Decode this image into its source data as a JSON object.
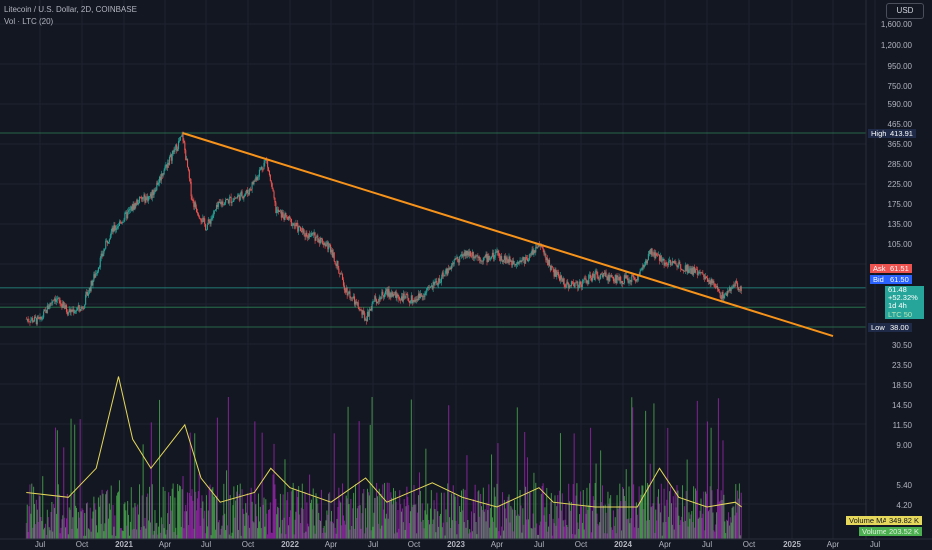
{
  "header": {
    "title": "Litecoin / U.S. Dollar, 2D, COINBASE",
    "volume_legend": "Vol · LTC (20)"
  },
  "currency_button": "USD",
  "chart_data": {
    "type": "candlestick",
    "scale": "log",
    "price_ticks": [
      "1,600.00",
      "1,200.00",
      "950.00",
      "750.00",
      "590.00",
      "465.00",
      "365.00",
      "285.00",
      "225.00",
      "175.00",
      "135.00",
      "105.00",
      "30.50",
      "23.50",
      "18.50",
      "14.50",
      "11.50",
      "9.00",
      "5.40",
      "4.20"
    ],
    "x_ticks": [
      "Jul",
      "Oct",
      "2021",
      "Apr",
      "Jul",
      "Oct",
      "2022",
      "Apr",
      "Jul",
      "Oct",
      "2023",
      "Apr",
      "Jul",
      "Oct",
      "2024",
      "Apr",
      "Jul",
      "Oct",
      "2025",
      "Apr",
      "Jul"
    ],
    "price_path": [
      [
        "2020-06-01",
        42
      ],
      [
        "2020-07-01",
        41
      ],
      [
        "2020-08-01",
        55
      ],
      [
        "2020-09-01",
        46
      ],
      [
        "2020-10-01",
        48
      ],
      [
        "2020-11-01",
        75
      ],
      [
        "2020-12-01",
        120
      ],
      [
        "2021-01-01",
        145
      ],
      [
        "2021-02-01",
        180
      ],
      [
        "2021-03-01",
        190
      ],
      [
        "2021-04-01",
        270
      ],
      [
        "2021-05-10",
        400
      ],
      [
        "2021-06-01",
        180
      ],
      [
        "2021-07-01",
        130
      ],
      [
        "2021-08-01",
        175
      ],
      [
        "2021-09-01",
        185
      ],
      [
        "2021-10-01",
        200
      ],
      [
        "2021-11-10",
        300
      ],
      [
        "2021-12-01",
        160
      ],
      [
        "2022-01-01",
        140
      ],
      [
        "2022-02-01",
        120
      ],
      [
        "2022-03-01",
        115
      ],
      [
        "2022-04-01",
        100
      ],
      [
        "2022-05-01",
        62
      ],
      [
        "2022-06-15",
        42
      ],
      [
        "2022-07-01",
        52
      ],
      [
        "2022-08-01",
        58
      ],
      [
        "2022-09-01",
        55
      ],
      [
        "2022-10-01",
        53
      ],
      [
        "2022-11-01",
        60
      ],
      [
        "2022-12-01",
        70
      ],
      [
        "2023-01-01",
        88
      ],
      [
        "2023-02-01",
        95
      ],
      [
        "2023-03-01",
        88
      ],
      [
        "2023-04-01",
        92
      ],
      [
        "2023-05-01",
        85
      ],
      [
        "2023-06-01",
        87
      ],
      [
        "2023-07-01",
        105
      ],
      [
        "2023-08-01",
        75
      ],
      [
        "2023-09-01",
        64
      ],
      [
        "2023-10-01",
        65
      ],
      [
        "2023-11-01",
        72
      ],
      [
        "2023-12-01",
        70
      ],
      [
        "2024-01-01",
        68
      ],
      [
        "2024-02-01",
        70
      ],
      [
        "2024-03-01",
        95
      ],
      [
        "2024-04-01",
        85
      ],
      [
        "2024-05-01",
        82
      ],
      [
        "2024-06-01",
        76
      ],
      [
        "2024-07-01",
        70
      ],
      [
        "2024-08-05",
        55
      ],
      [
        "2024-09-01",
        64
      ],
      [
        "2024-09-15",
        61.48
      ]
    ],
    "volume": {
      "ma_label": "Volume MA",
      "ma_value": "349.82 K",
      "volume_label": "Volume",
      "volume_value": "203.52 K",
      "ma_path": [
        [
          "2020-06-01",
          5.1
        ],
        [
          "2020-09-01",
          5.0
        ],
        [
          "2020-11-01",
          5.6
        ],
        [
          "2020-12-20",
          7.5
        ],
        [
          "2021-01-20",
          6.2
        ],
        [
          "2021-03-01",
          5.6
        ],
        [
          "2021-05-15",
          6.5
        ],
        [
          "2021-06-20",
          5.4
        ],
        [
          "2021-08-01",
          4.9
        ],
        [
          "2021-10-15",
          5.1
        ],
        [
          "2021-11-20",
          5.6
        ],
        [
          "2022-01-01",
          5.2
        ],
        [
          "2022-04-01",
          4.9
        ],
        [
          "2022-06-15",
          5.4
        ],
        [
          "2022-08-01",
          4.9
        ],
        [
          "2022-11-10",
          5.3
        ],
        [
          "2023-01-15",
          5.0
        ],
        [
          "2023-04-01",
          4.8
        ],
        [
          "2023-07-01",
          5.2
        ],
        [
          "2023-08-01",
          4.9
        ],
        [
          "2023-11-01",
          4.8
        ],
        [
          "2024-02-01",
          4.8
        ],
        [
          "2024-03-20",
          5.6
        ],
        [
          "2024-05-01",
          5.0
        ],
        [
          "2024-07-01",
          4.8
        ],
        [
          "2024-09-01",
          4.9
        ],
        [
          "2024-09-15",
          4.8
        ]
      ]
    },
    "trendline": {
      "start": [
        "2021-05-10",
        413.91
      ],
      "end": [
        "2025-04-01",
        34
      ],
      "color": "#f7931a"
    },
    "levels": [
      {
        "name": "high",
        "label": "High",
        "value": "413.91",
        "price": 413.91
      },
      {
        "name": "low",
        "label": "Low",
        "value": "38.00",
        "price": 38
      },
      {
        "name": "support",
        "price": 48.5
      },
      {
        "name": "current",
        "price": 61.48
      }
    ],
    "quote": {
      "ask_label": "Ask",
      "ask_value": "61.51",
      "bid_label": "Bid",
      "bid_value": "61.50",
      "last": "61.48",
      "change": "+52.32%",
      "countdown": "1d 4h",
      "hidden_tag": "LTC 50"
    },
    "colors": {
      "background": "#131722",
      "up": "#26a69a",
      "down": "#ef5350",
      "volume_up": "#4caf50",
      "volume_down": "#9c27b0",
      "ma": "#e6d85a",
      "trendline": "#f7931a",
      "level": "#2e8b57",
      "high_tag": "#1e2a47",
      "ask": "#ef5350",
      "bid": "#2962ff",
      "last": "#26a69a"
    }
  }
}
